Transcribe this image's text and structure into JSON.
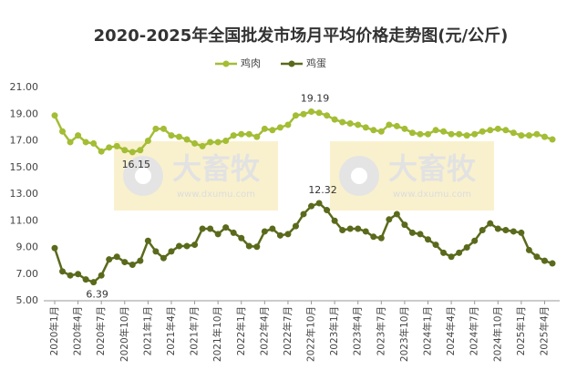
{
  "chart_data": {
    "type": "line",
    "title": "2020-2025年全国批发市场月平均价格走势图(元/公斤)",
    "watermark": "大畜牧",
    "watermark_url": "www.dxumu.com",
    "categories": [
      "2020年1月",
      null,
      null,
      "2020年4月",
      null,
      null,
      "2020年7月",
      null,
      null,
      "2020年10月",
      null,
      null,
      "2021年1月",
      null,
      null,
      "2021年4月",
      null,
      null,
      "2021年7月",
      null,
      null,
      "2021年10月",
      null,
      null,
      "2022年1月",
      null,
      null,
      "2022年4月",
      null,
      null,
      "2022年7月",
      null,
      null,
      "2022年10月",
      null,
      null,
      "2023年1月",
      null,
      null,
      "2023年4月",
      null,
      null,
      "2023年7月",
      null,
      null,
      "2023年10月",
      null,
      null,
      "2024年1月",
      null,
      null,
      "2024年4月",
      null,
      null,
      "2024年7月",
      null,
      null,
      "2024年10月",
      null,
      null,
      "2025年1月",
      null,
      null,
      "2025年4月",
      null
    ],
    "series": [
      {
        "name": "鸡肉",
        "color": "#a3bd35",
        "values": [
          18.9,
          17.7,
          16.9,
          17.4,
          16.9,
          16.8,
          16.2,
          16.5,
          16.6,
          16.3,
          16.15,
          16.3,
          17.0,
          17.9,
          17.9,
          17.4,
          17.3,
          17.1,
          16.8,
          16.6,
          16.9,
          16.9,
          17.0,
          17.4,
          17.5,
          17.5,
          17.3,
          17.9,
          17.8,
          18.0,
          18.2,
          18.9,
          19.0,
          19.19,
          19.1,
          18.9,
          18.6,
          18.4,
          18.3,
          18.2,
          18.0,
          17.8,
          17.7,
          18.2,
          18.1,
          17.9,
          17.6,
          17.5,
          17.5,
          17.8,
          17.7,
          17.5,
          17.5,
          17.4,
          17.5,
          17.7,
          17.8,
          17.9,
          17.8,
          17.6,
          17.4,
          17.4,
          17.5,
          17.3,
          17.1
        ],
        "value_labels": [
          null,
          null,
          null,
          null,
          null,
          null,
          null,
          null,
          null,
          null,
          "16.15",
          null,
          null,
          null,
          null,
          null,
          null,
          null,
          null,
          null,
          null,
          null,
          null,
          null,
          null,
          null,
          null,
          null,
          null,
          null,
          null,
          null,
          null,
          "19.19",
          null,
          null,
          null,
          null,
          null,
          null,
          null,
          null,
          null,
          null,
          null,
          null,
          null,
          null,
          null,
          null,
          null,
          null,
          null,
          null,
          null,
          null,
          null,
          null,
          null,
          null,
          null,
          null,
          null,
          null,
          null
        ]
      },
      {
        "name": "鸡蛋",
        "color": "#5a6a1c",
        "values": [
          8.95,
          7.2,
          6.9,
          7.0,
          6.6,
          6.39,
          6.9,
          8.1,
          8.3,
          7.9,
          7.7,
          8.0,
          9.5,
          8.7,
          8.2,
          8.7,
          9.1,
          9.1,
          9.2,
          10.4,
          10.4,
          10.0,
          10.5,
          10.1,
          9.7,
          9.1,
          9.05,
          10.2,
          10.4,
          9.9,
          10.0,
          10.6,
          11.5,
          12.1,
          12.32,
          11.8,
          11.0,
          10.3,
          10.4,
          10.4,
          10.2,
          9.8,
          9.7,
          11.1,
          11.5,
          10.7,
          10.1,
          10.0,
          9.6,
          9.2,
          8.6,
          8.3,
          8.6,
          9.0,
          9.5,
          10.3,
          10.8,
          10.4,
          10.3,
          10.2,
          10.1,
          8.8,
          8.3,
          8.0,
          7.8
        ],
        "value_labels": [
          null,
          null,
          null,
          null,
          null,
          "6.39",
          null,
          null,
          null,
          null,
          null,
          null,
          null,
          null,
          null,
          null,
          null,
          null,
          null,
          null,
          null,
          null,
          null,
          null,
          null,
          null,
          null,
          null,
          null,
          null,
          null,
          null,
          null,
          null,
          "12.32",
          null,
          null,
          null,
          null,
          null,
          null,
          null,
          null,
          null,
          null,
          null,
          null,
          null,
          null,
          null,
          null,
          null,
          null,
          null,
          null,
          null,
          null,
          null,
          null,
          null,
          null,
          null,
          null,
          null,
          null
        ]
      }
    ],
    "ylim": [
      5,
      21
    ],
    "yticks": [
      {
        "value": 5,
        "label": "5.00"
      },
      {
        "value": 7,
        "label": "7.00"
      },
      {
        "value": 9,
        "label": "9.00"
      },
      {
        "value": 11,
        "label": "11.00"
      },
      {
        "value": 13,
        "label": "13.00"
      },
      {
        "value": 15,
        "label": "15.00"
      },
      {
        "value": 17,
        "label": "17.00"
      },
      {
        "value": 19,
        "label": "19.00"
      },
      {
        "value": 21,
        "label": "21.00"
      }
    ],
    "grid": false,
    "legend": "top"
  }
}
